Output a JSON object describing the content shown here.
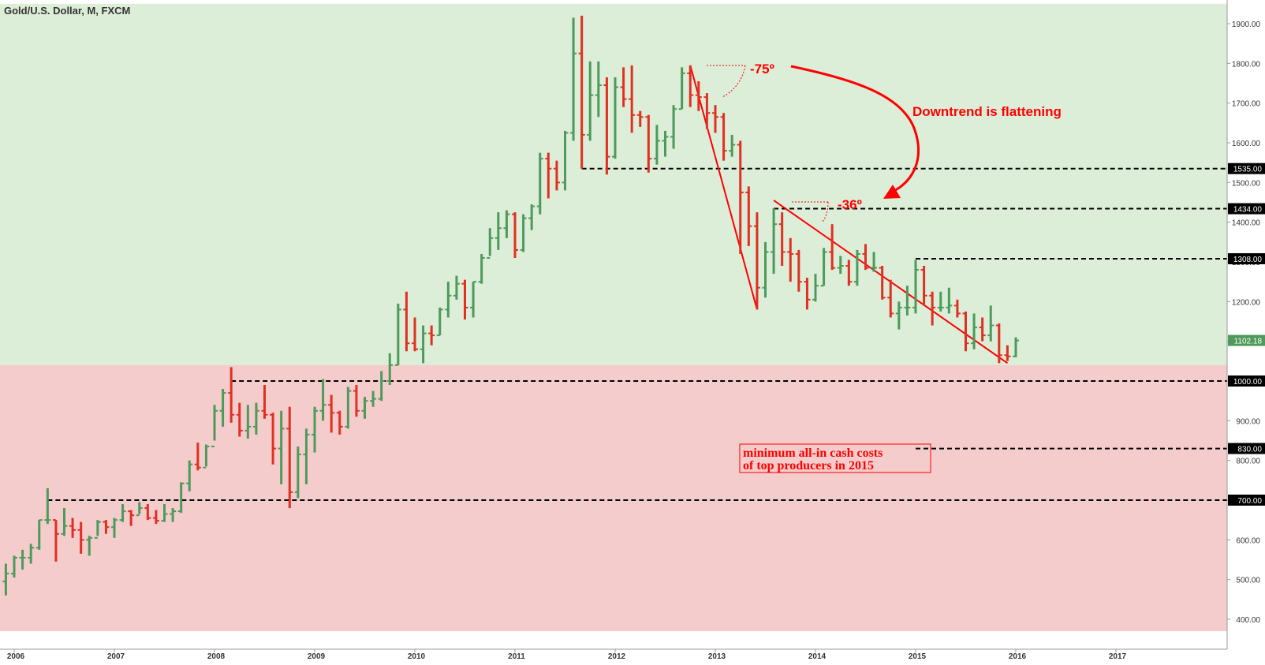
{
  "chart_data": {
    "type": "ohlc-bar",
    "title": "Gold/U.S. Dollar, M, FXCM",
    "xlabel": "",
    "ylabel": "",
    "ylim": [
      370,
      1950
    ],
    "xlim": [
      "2005-11",
      "2017-12"
    ],
    "y_ticks": [
      1900,
      1800,
      1700,
      1600,
      1500,
      1400,
      1300,
      1200,
      1100,
      1000,
      900,
      800,
      700,
      600,
      500,
      400
    ],
    "y_tick_labels": [
      "1900.00",
      "1800.00",
      "1700.00",
      "1600.00",
      "1500.00",
      "1400.00",
      "1300.00",
      "1200.00",
      "1100.00",
      "1000.00",
      "900.00",
      "800.00",
      "700.00",
      "600.00",
      "500.00",
      "400.00"
    ],
    "x_ticks": [
      "2006",
      "2007",
      "2008",
      "2009",
      "2010",
      "2011",
      "2012",
      "2013",
      "2014",
      "2015",
      "2016",
      "2017"
    ],
    "background_zones": [
      {
        "from": 1040,
        "to": 1950,
        "color": "#dcedd8"
      },
      {
        "from": 370,
        "to": 1040,
        "color": "#f4cccb"
      }
    ],
    "colors": {
      "up": "#4d9a5c",
      "down": "#e03022",
      "annotation": "#ff0000",
      "level_line": "#000000"
    },
    "current_price": {
      "value": 1102.18,
      "label": "1102.18",
      "color": "#4d9a5c"
    },
    "horizontal_levels": [
      {
        "value": 1535,
        "label": "1535.00",
        "start": "2011-09"
      },
      {
        "value": 1434,
        "label": "1434.00",
        "start": "2013-08"
      },
      {
        "value": 1308,
        "label": "1308.00",
        "start": "2015-01"
      },
      {
        "value": 1000,
        "label": "1000.00",
        "start": "2008-03"
      },
      {
        "value": 830,
        "label": "830.00",
        "start": "2015-01"
      },
      {
        "value": 700,
        "label": "700.00",
        "start": "2006-05"
      }
    ],
    "trendlines": [
      {
        "from": [
          "2012-10",
          1795
        ],
        "to": [
          "2013-06",
          1180
        ],
        "color": "#ff0000"
      },
      {
        "from": [
          "2013-08",
          1455
        ],
        "to": [
          "2015-12",
          1045
        ],
        "color": "#ff0000"
      }
    ],
    "angle_annotations": [
      {
        "text": "-75º",
        "anchor": [
          "2012-10",
          1795
        ]
      },
      {
        "text": "-36º",
        "anchor": [
          "2013-08",
          1455
        ]
      }
    ],
    "callouts": [
      {
        "text": "Downtrend is flattening",
        "color": "#ff0000"
      },
      {
        "lines": [
          "minimum all-in cash costs",
          "of top producers in 2015"
        ],
        "color": "#ff0000",
        "level": 830
      }
    ],
    "ohlc": [
      {
        "date": "2005-12",
        "o": 495,
        "h": 540,
        "l": 460,
        "c": 515
      },
      {
        "date": "2006-01",
        "o": 515,
        "h": 560,
        "l": 505,
        "c": 555
      },
      {
        "date": "2006-02",
        "o": 555,
        "h": 575,
        "l": 525,
        "c": 555
      },
      {
        "date": "2006-03",
        "o": 555,
        "h": 590,
        "l": 540,
        "c": 580
      },
      {
        "date": "2006-04",
        "o": 580,
        "h": 650,
        "l": 575,
        "c": 650
      },
      {
        "date": "2006-05",
        "o": 650,
        "h": 730,
        "l": 640,
        "c": 650
      },
      {
        "date": "2006-06",
        "o": 650,
        "h": 650,
        "l": 545,
        "c": 615
      },
      {
        "date": "2006-07",
        "o": 615,
        "h": 680,
        "l": 610,
        "c": 635
      },
      {
        "date": "2006-08",
        "o": 635,
        "h": 655,
        "l": 605,
        "c": 625
      },
      {
        "date": "2006-09",
        "o": 625,
        "h": 645,
        "l": 565,
        "c": 600
      },
      {
        "date": "2006-10",
        "o": 600,
        "h": 610,
        "l": 560,
        "c": 605
      },
      {
        "date": "2006-11",
        "o": 605,
        "h": 650,
        "l": 610,
        "c": 645
      },
      {
        "date": "2006-12",
        "o": 645,
        "h": 650,
        "l": 615,
        "c": 632
      },
      {
        "date": "2007-01",
        "o": 632,
        "h": 655,
        "l": 605,
        "c": 650
      },
      {
        "date": "2007-02",
        "o": 650,
        "h": 690,
        "l": 645,
        "c": 672
      },
      {
        "date": "2007-03",
        "o": 672,
        "h": 675,
        "l": 635,
        "c": 662
      },
      {
        "date": "2007-04",
        "o": 662,
        "h": 695,
        "l": 665,
        "c": 680
      },
      {
        "date": "2007-05",
        "o": 680,
        "h": 690,
        "l": 650,
        "c": 655
      },
      {
        "date": "2007-06",
        "o": 655,
        "h": 675,
        "l": 640,
        "c": 648
      },
      {
        "date": "2007-07",
        "o": 648,
        "h": 690,
        "l": 645,
        "c": 665
      },
      {
        "date": "2007-08",
        "o": 665,
        "h": 680,
        "l": 645,
        "c": 672
      },
      {
        "date": "2007-09",
        "o": 672,
        "h": 745,
        "l": 668,
        "c": 742
      },
      {
        "date": "2007-10",
        "o": 742,
        "h": 800,
        "l": 722,
        "c": 790
      },
      {
        "date": "2007-11",
        "o": 790,
        "h": 845,
        "l": 775,
        "c": 782
      },
      {
        "date": "2007-12",
        "o": 782,
        "h": 840,
        "l": 785,
        "c": 835
      },
      {
        "date": "2008-01",
        "o": 835,
        "h": 940,
        "l": 850,
        "c": 925
      },
      {
        "date": "2008-02",
        "o": 925,
        "h": 980,
        "l": 885,
        "c": 970
      },
      {
        "date": "2008-03",
        "o": 970,
        "h": 1035,
        "l": 895,
        "c": 915
      },
      {
        "date": "2008-04",
        "o": 915,
        "h": 945,
        "l": 860,
        "c": 875
      },
      {
        "date": "2008-05",
        "o": 875,
        "h": 940,
        "l": 855,
        "c": 885
      },
      {
        "date": "2008-06",
        "o": 885,
        "h": 945,
        "l": 865,
        "c": 925
      },
      {
        "date": "2008-07",
        "o": 925,
        "h": 990,
        "l": 905,
        "c": 915
      },
      {
        "date": "2008-08",
        "o": 915,
        "h": 920,
        "l": 790,
        "c": 830
      },
      {
        "date": "2008-09",
        "o": 830,
        "h": 925,
        "l": 740,
        "c": 880
      },
      {
        "date": "2008-10",
        "o": 880,
        "h": 935,
        "l": 680,
        "c": 720
      },
      {
        "date": "2008-11",
        "o": 720,
        "h": 835,
        "l": 705,
        "c": 815
      },
      {
        "date": "2008-12",
        "o": 815,
        "h": 880,
        "l": 740,
        "c": 865
      },
      {
        "date": "2009-01",
        "o": 865,
        "h": 935,
        "l": 820,
        "c": 925
      },
      {
        "date": "2009-02",
        "o": 925,
        "h": 1005,
        "l": 900,
        "c": 940
      },
      {
        "date": "2009-03",
        "o": 940,
        "h": 965,
        "l": 870,
        "c": 920
      },
      {
        "date": "2009-04",
        "o": 920,
        "h": 925,
        "l": 865,
        "c": 885
      },
      {
        "date": "2009-05",
        "o": 885,
        "h": 985,
        "l": 880,
        "c": 975
      },
      {
        "date": "2009-06",
        "o": 975,
        "h": 990,
        "l": 910,
        "c": 925
      },
      {
        "date": "2009-07",
        "o": 925,
        "h": 960,
        "l": 905,
        "c": 950
      },
      {
        "date": "2009-08",
        "o": 950,
        "h": 975,
        "l": 935,
        "c": 955
      },
      {
        "date": "2009-09",
        "o": 955,
        "h": 1025,
        "l": 950,
        "c": 1000
      },
      {
        "date": "2009-10",
        "o": 1000,
        "h": 1070,
        "l": 990,
        "c": 1040
      },
      {
        "date": "2009-11",
        "o": 1040,
        "h": 1195,
        "l": 1040,
        "c": 1180
      },
      {
        "date": "2009-12",
        "o": 1180,
        "h": 1225,
        "l": 1075,
        "c": 1095
      },
      {
        "date": "2010-01",
        "o": 1095,
        "h": 1160,
        "l": 1075,
        "c": 1080
      },
      {
        "date": "2010-02",
        "o": 1080,
        "h": 1140,
        "l": 1045,
        "c": 1120
      },
      {
        "date": "2010-03",
        "o": 1120,
        "h": 1140,
        "l": 1090,
        "c": 1115
      },
      {
        "date": "2010-04",
        "o": 1115,
        "h": 1185,
        "l": 1115,
        "c": 1180
      },
      {
        "date": "2010-05",
        "o": 1180,
        "h": 1250,
        "l": 1160,
        "c": 1215
      },
      {
        "date": "2010-06",
        "o": 1215,
        "h": 1265,
        "l": 1205,
        "c": 1245
      },
      {
        "date": "2010-07",
        "o": 1245,
        "h": 1255,
        "l": 1155,
        "c": 1185
      },
      {
        "date": "2010-08",
        "o": 1185,
        "h": 1250,
        "l": 1160,
        "c": 1250
      },
      {
        "date": "2010-09",
        "o": 1250,
        "h": 1320,
        "l": 1245,
        "c": 1310
      },
      {
        "date": "2010-10",
        "o": 1310,
        "h": 1385,
        "l": 1315,
        "c": 1360
      },
      {
        "date": "2010-11",
        "o": 1360,
        "h": 1425,
        "l": 1330,
        "c": 1385
      },
      {
        "date": "2010-12",
        "o": 1385,
        "h": 1430,
        "l": 1360,
        "c": 1420
      },
      {
        "date": "2011-01",
        "o": 1420,
        "h": 1425,
        "l": 1310,
        "c": 1330
      },
      {
        "date": "2011-02",
        "o": 1330,
        "h": 1420,
        "l": 1325,
        "c": 1410
      },
      {
        "date": "2011-03",
        "o": 1410,
        "h": 1445,
        "l": 1380,
        "c": 1440
      },
      {
        "date": "2011-04",
        "o": 1440,
        "h": 1575,
        "l": 1420,
        "c": 1560
      },
      {
        "date": "2011-05",
        "o": 1560,
        "h": 1575,
        "l": 1460,
        "c": 1535
      },
      {
        "date": "2011-06",
        "o": 1535,
        "h": 1555,
        "l": 1480,
        "c": 1500
      },
      {
        "date": "2011-07",
        "o": 1500,
        "h": 1630,
        "l": 1480,
        "c": 1625
      },
      {
        "date": "2011-08",
        "o": 1625,
        "h": 1915,
        "l": 1605,
        "c": 1825
      },
      {
        "date": "2011-09",
        "o": 1825,
        "h": 1920,
        "l": 1535,
        "c": 1620
      },
      {
        "date": "2011-10",
        "o": 1620,
        "h": 1805,
        "l": 1605,
        "c": 1720
      },
      {
        "date": "2011-11",
        "o": 1720,
        "h": 1805,
        "l": 1665,
        "c": 1745
      },
      {
        "date": "2011-12",
        "o": 1745,
        "h": 1765,
        "l": 1520,
        "c": 1565
      },
      {
        "date": "2012-01",
        "o": 1565,
        "h": 1765,
        "l": 1560,
        "c": 1740
      },
      {
        "date": "2012-02",
        "o": 1740,
        "h": 1790,
        "l": 1690,
        "c": 1710
      },
      {
        "date": "2012-03",
        "o": 1710,
        "h": 1795,
        "l": 1625,
        "c": 1670
      },
      {
        "date": "2012-04",
        "o": 1670,
        "h": 1680,
        "l": 1640,
        "c": 1665
      },
      {
        "date": "2012-05",
        "o": 1665,
        "h": 1670,
        "l": 1525,
        "c": 1560
      },
      {
        "date": "2012-06",
        "o": 1560,
        "h": 1645,
        "l": 1545,
        "c": 1605
      },
      {
        "date": "2012-07",
        "o": 1605,
        "h": 1630,
        "l": 1565,
        "c": 1615
      },
      {
        "date": "2012-08",
        "o": 1615,
        "h": 1695,
        "l": 1585,
        "c": 1685
      },
      {
        "date": "2012-09",
        "o": 1685,
        "h": 1790,
        "l": 1685,
        "c": 1775
      },
      {
        "date": "2012-10",
        "o": 1775,
        "h": 1795,
        "l": 1690,
        "c": 1720
      },
      {
        "date": "2012-11",
        "o": 1720,
        "h": 1755,
        "l": 1680,
        "c": 1715
      },
      {
        "date": "2012-12",
        "o": 1715,
        "h": 1725,
        "l": 1635,
        "c": 1675
      },
      {
        "date": "2013-01",
        "o": 1675,
        "h": 1695,
        "l": 1625,
        "c": 1665
      },
      {
        "date": "2013-02",
        "o": 1665,
        "h": 1675,
        "l": 1555,
        "c": 1580
      },
      {
        "date": "2013-03",
        "o": 1580,
        "h": 1620,
        "l": 1565,
        "c": 1595
      },
      {
        "date": "2013-04",
        "o": 1595,
        "h": 1605,
        "l": 1320,
        "c": 1475
      },
      {
        "date": "2013-05",
        "o": 1475,
        "h": 1490,
        "l": 1340,
        "c": 1390
      },
      {
        "date": "2013-06",
        "o": 1390,
        "h": 1425,
        "l": 1180,
        "c": 1235
      },
      {
        "date": "2013-07",
        "o": 1235,
        "h": 1350,
        "l": 1210,
        "c": 1325
      },
      {
        "date": "2013-08",
        "o": 1325,
        "h": 1435,
        "l": 1270,
        "c": 1395
      },
      {
        "date": "2013-09",
        "o": 1395,
        "h": 1425,
        "l": 1290,
        "c": 1325
      },
      {
        "date": "2013-10",
        "o": 1325,
        "h": 1360,
        "l": 1250,
        "c": 1320
      },
      {
        "date": "2013-11",
        "o": 1320,
        "h": 1330,
        "l": 1225,
        "c": 1250
      },
      {
        "date": "2013-12",
        "o": 1250,
        "h": 1260,
        "l": 1180,
        "c": 1205
      },
      {
        "date": "2014-01",
        "o": 1205,
        "h": 1270,
        "l": 1200,
        "c": 1240
      },
      {
        "date": "2014-02",
        "o": 1240,
        "h": 1335,
        "l": 1240,
        "c": 1325
      },
      {
        "date": "2014-03",
        "o": 1325,
        "h": 1395,
        "l": 1280,
        "c": 1285
      },
      {
        "date": "2014-04",
        "o": 1285,
        "h": 1315,
        "l": 1270,
        "c": 1290
      },
      {
        "date": "2014-05",
        "o": 1290,
        "h": 1305,
        "l": 1240,
        "c": 1250
      },
      {
        "date": "2014-06",
        "o": 1250,
        "h": 1330,
        "l": 1240,
        "c": 1320
      },
      {
        "date": "2014-07",
        "o": 1320,
        "h": 1345,
        "l": 1280,
        "c": 1285
      },
      {
        "date": "2014-08",
        "o": 1285,
        "h": 1325,
        "l": 1275,
        "c": 1285
      },
      {
        "date": "2014-09",
        "o": 1285,
        "h": 1290,
        "l": 1205,
        "c": 1210
      },
      {
        "date": "2014-10",
        "o": 1210,
        "h": 1255,
        "l": 1160,
        "c": 1170
      },
      {
        "date": "2014-11",
        "o": 1170,
        "h": 1200,
        "l": 1130,
        "c": 1185
      },
      {
        "date": "2014-12",
        "o": 1185,
        "h": 1240,
        "l": 1165,
        "c": 1185
      },
      {
        "date": "2015-01",
        "o": 1185,
        "h": 1305,
        "l": 1170,
        "c": 1280
      },
      {
        "date": "2015-02",
        "o": 1280,
        "h": 1290,
        "l": 1190,
        "c": 1215
      },
      {
        "date": "2015-03",
        "o": 1215,
        "h": 1225,
        "l": 1140,
        "c": 1185
      },
      {
        "date": "2015-04",
        "o": 1185,
        "h": 1225,
        "l": 1175,
        "c": 1185
      },
      {
        "date": "2015-05",
        "o": 1185,
        "h": 1235,
        "l": 1170,
        "c": 1190
      },
      {
        "date": "2015-06",
        "o": 1190,
        "h": 1205,
        "l": 1160,
        "c": 1170
      },
      {
        "date": "2015-07",
        "o": 1170,
        "h": 1175,
        "l": 1075,
        "c": 1095
      },
      {
        "date": "2015-08",
        "o": 1095,
        "h": 1170,
        "l": 1080,
        "c": 1135
      },
      {
        "date": "2015-09",
        "o": 1135,
        "h": 1160,
        "l": 1100,
        "c": 1115
      },
      {
        "date": "2015-10",
        "o": 1115,
        "h": 1190,
        "l": 1100,
        "c": 1140
      },
      {
        "date": "2015-11",
        "o": 1140,
        "h": 1145,
        "l": 1045,
        "c": 1065
      },
      {
        "date": "2015-12",
        "o": 1065,
        "h": 1090,
        "l": 1050,
        "c": 1062
      },
      {
        "date": "2016-01",
        "o": 1062,
        "h": 1110,
        "l": 1060,
        "c": 1102
      }
    ]
  }
}
